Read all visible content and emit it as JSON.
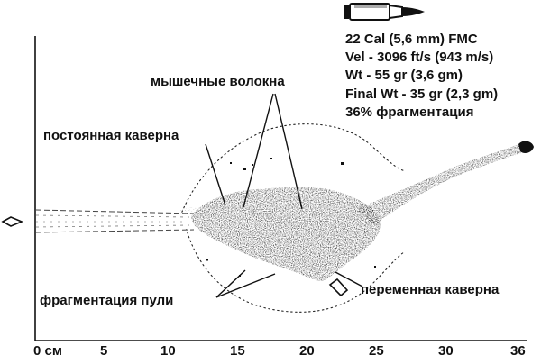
{
  "specs": [
    "22 Cal (5,6 mm) FMC",
    "Vel - 3096 ft/s (943 m/s)",
    "Wt - 55 gr (3,6 gm)",
    "Final Wt - 35 gr (2,3 gm)",
    "36% фрагментация"
  ],
  "labels": {
    "muscle_fibers": "мышечные волокна",
    "permanent_cavity": "постоянная каверна",
    "bullet_fragmentation": "фрагментация пули",
    "temporary_cavity": "переменная каверна"
  },
  "scale": {
    "ticks": [
      "0 см",
      "5",
      "10",
      "15",
      "20",
      "25",
      "30",
      "36"
    ],
    "unit": "см"
  },
  "icons": [
    "bullet-cartridge-icon",
    "bullet-entry-icon",
    "bullet-fragment-icon",
    "bullet-exit-icon"
  ],
  "colors": {
    "ink": "#111111",
    "background": "#ffffff"
  }
}
